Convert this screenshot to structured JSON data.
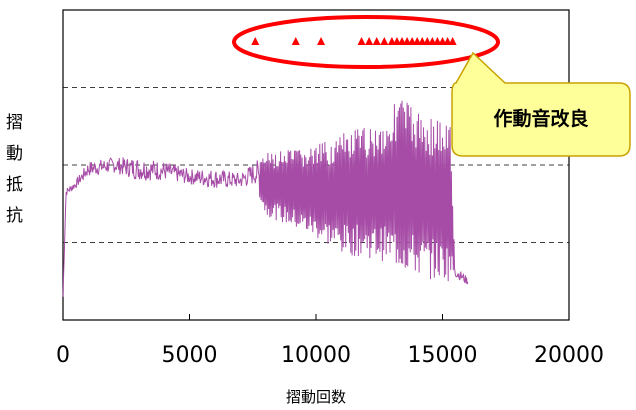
{
  "chart_data": {
    "type": "line",
    "title": "",
    "xlabel": "摺動回数",
    "ylabel": "摺動抵抗",
    "xlim": [
      0,
      20000
    ],
    "xticks": [
      0,
      5000,
      10000,
      15000,
      20000
    ],
    "ylim": [
      0,
      4
    ],
    "yticks_dashed": [
      1,
      2,
      3
    ],
    "y_tick_labels_shown": false,
    "grid": "horizontal-dashed",
    "series": [
      {
        "color": "#a64ca6",
        "envelope": [
          {
            "x": 0,
            "low": 0.3,
            "high": 0.3
          },
          {
            "x": 120,
            "low": 1.6,
            "high": 1.7
          },
          {
            "x": 500,
            "low": 1.7,
            "high": 1.8
          },
          {
            "x": 1000,
            "low": 1.85,
            "high": 2.05
          },
          {
            "x": 2000,
            "low": 1.9,
            "high": 2.1
          },
          {
            "x": 3000,
            "low": 1.8,
            "high": 2.1
          },
          {
            "x": 4000,
            "low": 1.8,
            "high": 2.05
          },
          {
            "x": 5000,
            "low": 1.75,
            "high": 1.95
          },
          {
            "x": 6000,
            "low": 1.7,
            "high": 1.95
          },
          {
            "x": 7000,
            "low": 1.7,
            "high": 1.9
          },
          {
            "x": 7600,
            "low": 1.75,
            "high": 2.05
          },
          {
            "x": 8000,
            "low": 1.35,
            "high": 2.15
          },
          {
            "x": 9000,
            "low": 1.2,
            "high": 2.2
          },
          {
            "x": 10000,
            "low": 1.05,
            "high": 2.25
          },
          {
            "x": 11000,
            "low": 0.85,
            "high": 2.4
          },
          {
            "x": 12000,
            "low": 0.8,
            "high": 2.5
          },
          {
            "x": 12800,
            "low": 0.75,
            "high": 2.6
          },
          {
            "x": 13300,
            "low": 0.65,
            "high": 2.95
          },
          {
            "x": 14000,
            "low": 0.55,
            "high": 2.7
          },
          {
            "x": 15000,
            "low": 0.5,
            "high": 2.6
          },
          {
            "x": 15300,
            "low": 0.5,
            "high": 2.55
          },
          {
            "x": 15500,
            "low": 0.55,
            "high": 0.7
          },
          {
            "x": 16000,
            "low": 0.45,
            "high": 0.55
          }
        ]
      }
    ],
    "markers": {
      "shape": "triangle",
      "color": "#ff0000",
      "y": 3.6,
      "x": [
        7600,
        9200,
        10200,
        11800,
        12100,
        12400,
        12700,
        13000,
        13200,
        13400,
        13600,
        13800,
        14000,
        14200,
        14400,
        14600,
        14800,
        15000,
        15200,
        15400
      ]
    },
    "highlight_ellipse": {
      "color": "#ff0000"
    },
    "callout": {
      "text": "作動音改良",
      "fill": "#ffff99",
      "border": "#c8a200",
      "text_color": "#000000"
    }
  }
}
